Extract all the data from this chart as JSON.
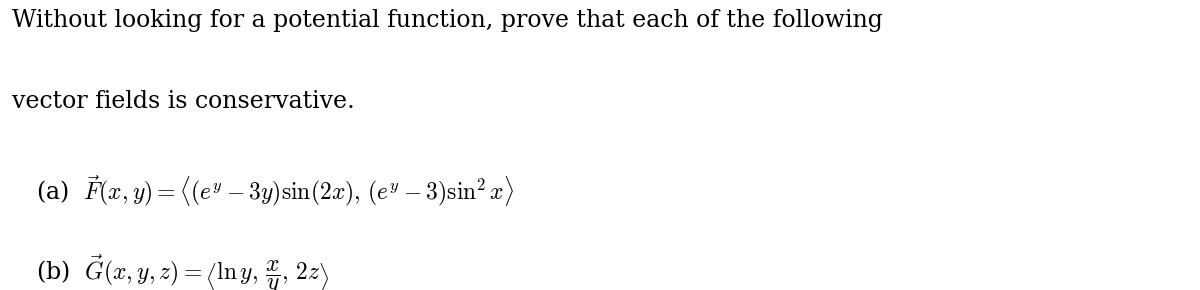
{
  "background_color": "#ffffff",
  "text_color": "#000000",
  "figsize": [
    12.0,
    2.9
  ],
  "dpi": 100,
  "line1": "Without looking for a potential function, prove that each of the following",
  "line2": "vector fields is conservative.",
  "part_a": "(a)  $\\vec{F}(x, y) = \\langle (e^y - 3y)\\sin(2x),\\,(e^y - 3)\\sin^2 x\\rangle$",
  "part_b": "(b)  $\\vec{G}(x, y, z) = \\left\\langle \\ln y,\\, \\dfrac{x}{y},\\, 2z \\right\\rangle$",
  "font_size_text": 17,
  "font_size_math": 17
}
